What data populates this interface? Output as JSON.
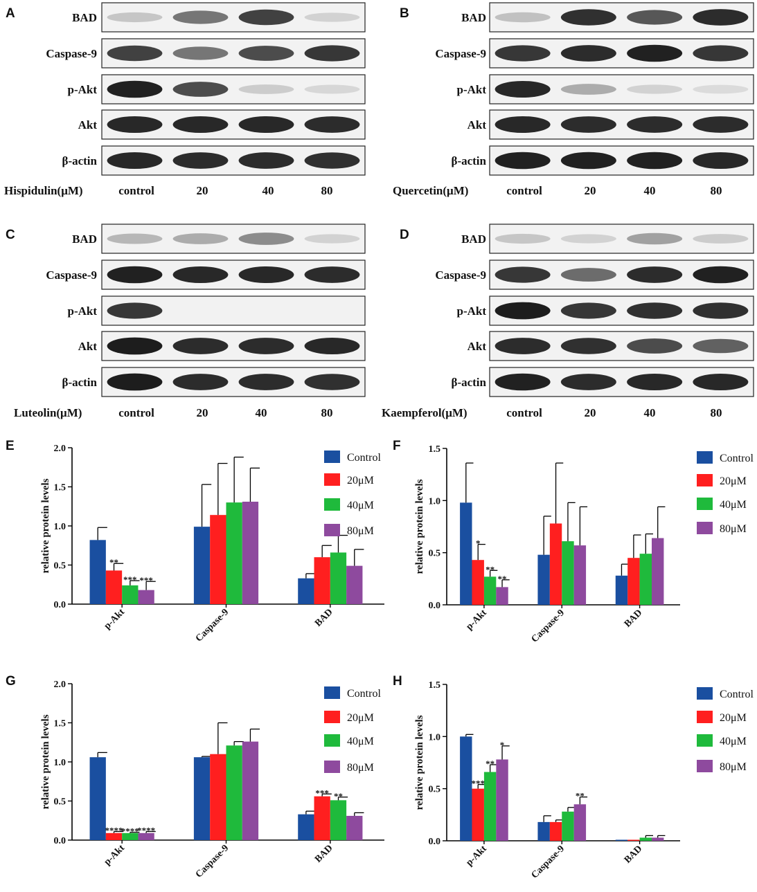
{
  "blots": [
    {
      "letter": "A",
      "treatment_label": "Hispidulin(μM)",
      "rows": [
        "BAD",
        "Caspase-9",
        "p-Akt",
        "Akt",
        "β-actin"
      ],
      "lanes": [
        "control",
        "20",
        "40",
        "80"
      ],
      "intensity": [
        [
          0.18,
          0.55,
          0.8,
          0.12
        ],
        [
          0.8,
          0.55,
          0.75,
          0.85
        ],
        [
          0.95,
          0.75,
          0.15,
          0.1
        ],
        [
          0.92,
          0.92,
          0.92,
          0.9
        ],
        [
          0.92,
          0.9,
          0.9,
          0.88
        ]
      ]
    },
    {
      "letter": "B",
      "treatment_label": "Quercetin(μM)",
      "rows": [
        "BAD",
        "Caspase-9",
        "p-Akt",
        "Akt",
        "β-actin"
      ],
      "lanes": [
        "control",
        "20",
        "40",
        "80"
      ],
      "intensity": [
        [
          0.2,
          0.88,
          0.7,
          0.9
        ],
        [
          0.85,
          0.9,
          0.95,
          0.85
        ],
        [
          0.92,
          0.3,
          0.12,
          0.08
        ],
        [
          0.92,
          0.9,
          0.9,
          0.9
        ],
        [
          0.95,
          0.95,
          0.95,
          0.92
        ]
      ]
    },
    {
      "letter": "C",
      "treatment_label": "Luteolin(μM)",
      "rows": [
        "BAD",
        "Caspase-9",
        "p-Akt",
        "Akt",
        "β-actin"
      ],
      "lanes": [
        "control",
        "20",
        "40",
        "80"
      ],
      "intensity": [
        [
          0.25,
          0.3,
          0.45,
          0.12
        ],
        [
          0.95,
          0.92,
          0.92,
          0.9
        ],
        [
          0.85,
          0.0,
          0.0,
          0.0
        ],
        [
          0.97,
          0.9,
          0.9,
          0.92
        ],
        [
          0.97,
          0.9,
          0.9,
          0.88
        ]
      ]
    },
    {
      "letter": "D",
      "treatment_label": "Kaempferol(μM)",
      "rows": [
        "BAD",
        "Caspase-9",
        "p-Akt",
        "Akt",
        "β-actin"
      ],
      "lanes": [
        "control",
        "20",
        "40",
        "80"
      ],
      "intensity": [
        [
          0.18,
          0.12,
          0.35,
          0.15
        ],
        [
          0.85,
          0.6,
          0.9,
          0.95
        ],
        [
          0.97,
          0.85,
          0.88,
          0.88
        ],
        [
          0.9,
          0.88,
          0.75,
          0.65
        ],
        [
          0.95,
          0.9,
          0.92,
          0.92
        ]
      ]
    }
  ],
  "legend": [
    "Control",
    "20μM",
    "40μM",
    "80μM"
  ],
  "colors": {
    "Control": "#1a4fa0",
    "20μM": "#ff1f1f",
    "40μM": "#1fba3c",
    "80μM": "#8e4a9e",
    "axis": "#000000",
    "blot_bg": "#f2f2f2"
  },
  "chart_data": [
    {
      "letter": "E",
      "type": "bar",
      "categories": [
        "p-Akt",
        "Caspase-9",
        "BAD"
      ],
      "ylabel": "relative protein levels",
      "ylim": [
        0,
        2.0
      ],
      "yticks": [
        "0.0",
        "0.5",
        "1.0",
        "1.5",
        "2.0"
      ],
      "series": [
        {
          "name": "Control",
          "values": [
            0.82,
            0.99,
            0.33
          ],
          "errors": [
            0.16,
            0.54,
            0.06
          ]
        },
        {
          "name": "20μM",
          "values": [
            0.43,
            1.14,
            0.6
          ],
          "errors": [
            0.09,
            0.66,
            0.15
          ]
        },
        {
          "name": "40μM",
          "values": [
            0.24,
            1.3,
            0.66
          ],
          "errors": [
            0.06,
            0.58,
            0.22
          ]
        },
        {
          "name": "80μM",
          "values": [
            0.18,
            1.31,
            0.49
          ],
          "errors": [
            0.11,
            0.43,
            0.21
          ]
        }
      ],
      "annotations": [
        {
          "category": "p-Akt",
          "series": "20μM",
          "text": "**"
        },
        {
          "category": "p-Akt",
          "series": "40μM",
          "text": "***"
        },
        {
          "category": "p-Akt",
          "series": "80μM",
          "text": "***"
        }
      ]
    },
    {
      "letter": "F",
      "type": "bar",
      "categories": [
        "p-Akt",
        "Caspase-9",
        "BAD"
      ],
      "ylabel": "relative protein levels",
      "ylim": [
        0,
        1.5
      ],
      "yticks": [
        "0.0",
        "0.5",
        "1.0",
        "1.5"
      ],
      "series": [
        {
          "name": "Control",
          "values": [
            0.98,
            0.48,
            0.28
          ],
          "errors": [
            0.38,
            0.37,
            0.11
          ]
        },
        {
          "name": "20μM",
          "values": [
            0.43,
            0.78,
            0.45
          ],
          "errors": [
            0.15,
            0.58,
            0.22
          ]
        },
        {
          "name": "40μM",
          "values": [
            0.27,
            0.61,
            0.49
          ],
          "errors": [
            0.06,
            0.37,
            0.19
          ]
        },
        {
          "name": "80μM",
          "values": [
            0.17,
            0.57,
            0.64
          ],
          "errors": [
            0.07,
            0.37,
            0.3
          ]
        }
      ],
      "annotations": [
        {
          "category": "p-Akt",
          "series": "20μM",
          "text": "*"
        },
        {
          "category": "p-Akt",
          "series": "40μM",
          "text": "**"
        },
        {
          "category": "p-Akt",
          "series": "80μM",
          "text": "**"
        }
      ]
    },
    {
      "letter": "G",
      "type": "bar",
      "categories": [
        "p-Akt",
        "Caspase-9",
        "BAD"
      ],
      "ylabel": "relative protein levels",
      "ylim": [
        0,
        2.0
      ],
      "yticks": [
        "0.0",
        "0.5",
        "1.0",
        "1.5",
        "2.0"
      ],
      "series": [
        {
          "name": "Control",
          "values": [
            1.06,
            1.06,
            0.33
          ],
          "errors": [
            0.06,
            0.01,
            0.04
          ]
        },
        {
          "name": "20μM",
          "values": [
            0.09,
            1.1,
            0.56
          ],
          "errors": [
            0.02,
            0.4,
            0.03
          ]
        },
        {
          "name": "40μM",
          "values": [
            0.09,
            1.21,
            0.51
          ],
          "errors": [
            0.01,
            0.05,
            0.04
          ]
        },
        {
          "name": "80μM",
          "values": [
            0.09,
            1.26,
            0.31
          ],
          "errors": [
            0.02,
            0.16,
            0.04
          ]
        }
      ],
      "annotations": [
        {
          "category": "p-Akt",
          "series": "20μM",
          "text": "****"
        },
        {
          "category": "p-Akt",
          "series": "40μM",
          "text": "****"
        },
        {
          "category": "p-Akt",
          "series": "80μM",
          "text": "****"
        },
        {
          "category": "BAD",
          "series": "20μM",
          "text": "***"
        },
        {
          "category": "BAD",
          "series": "40μM",
          "text": "**"
        }
      ]
    },
    {
      "letter": "H",
      "type": "bar",
      "categories": [
        "p-Akt",
        "Caspase-9",
        "BAD"
      ],
      "ylabel": "relative protein levels",
      "ylim": [
        0,
        1.5
      ],
      "yticks": [
        "0.0",
        "0.5",
        "1.0",
        "1.5"
      ],
      "series": [
        {
          "name": "Control",
          "values": [
            1.0,
            0.18,
            0.01
          ],
          "errors": [
            0.02,
            0.06,
            0.0
          ]
        },
        {
          "name": "20μM",
          "values": [
            0.5,
            0.18,
            0.01
          ],
          "errors": [
            0.04,
            0.02,
            0.0
          ]
        },
        {
          "name": "40μM",
          "values": [
            0.66,
            0.28,
            0.03
          ],
          "errors": [
            0.07,
            0.04,
            0.02
          ]
        },
        {
          "name": "80μM",
          "values": [
            0.78,
            0.35,
            0.03
          ],
          "errors": [
            0.13,
            0.07,
            0.02
          ]
        }
      ],
      "annotations": [
        {
          "category": "p-Akt",
          "series": "20μM",
          "text": "***"
        },
        {
          "category": "p-Akt",
          "series": "40μM",
          "text": "**"
        },
        {
          "category": "p-Akt",
          "series": "80μM",
          "text": "*"
        },
        {
          "category": "Caspase-9",
          "series": "80μM",
          "text": "**"
        }
      ]
    }
  ]
}
